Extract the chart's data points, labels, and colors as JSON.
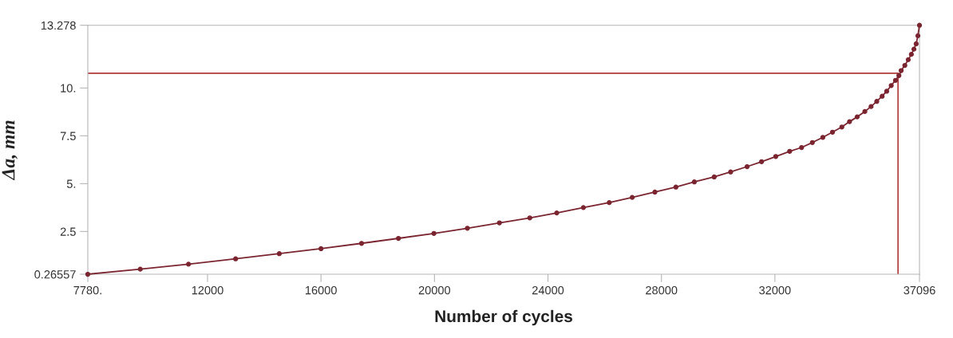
{
  "chart_data": {
    "type": "line",
    "xlabel": "Number of cycles",
    "ylabel": "Δa, mm",
    "series": [
      {
        "color": "#7a2530",
        "marker": "circle",
        "x": [
          7780,
          9630,
          11330,
          12990,
          14530,
          16000,
          17430,
          18730,
          19980,
          21160,
          22290,
          23360,
          24310,
          25250,
          26160,
          26970,
          27770,
          28510,
          29160,
          29860,
          30440,
          31020,
          31530,
          32030,
          32520,
          32940,
          33320,
          33690,
          34030,
          34360,
          34630,
          34900,
          35170,
          35390,
          35590,
          35780,
          35940,
          36100,
          36250,
          36370,
          36450,
          36580,
          36700,
          36810,
          36900,
          36980,
          37040,
          37096
        ],
        "values": [
          0.26557,
          0.53,
          0.79,
          1.07,
          1.34,
          1.6,
          1.88,
          2.14,
          2.4,
          2.67,
          2.95,
          3.21,
          3.47,
          3.75,
          4.01,
          4.28,
          4.56,
          4.82,
          5.09,
          5.35,
          5.61,
          5.89,
          6.15,
          6.42,
          6.69,
          6.89,
          7.15,
          7.42,
          7.69,
          7.96,
          8.24,
          8.49,
          8.77,
          9.03,
          9.3,
          9.57,
          9.83,
          10.13,
          10.4,
          10.65,
          10.91,
          11.18,
          11.48,
          11.76,
          12.03,
          12.31,
          12.73,
          13.278
        ]
      }
    ],
    "xlim": [
      7780,
      37096
    ],
    "xticks": [
      {
        "value": 7780,
        "label": "7780."
      },
      12000,
      16000,
      20000,
      24000,
      28000,
      32000,
      37096
    ],
    "ylim": [
      0.26557,
      13.278
    ],
    "yticks": [
      0.26557,
      2.5,
      {
        "value": 5,
        "label": "5."
      },
      7.5,
      {
        "value": 10,
        "label": "10."
      },
      13.278
    ],
    "ref_lines": [
      {
        "axis": "y",
        "value": 10.77,
        "color": "#b03a3a"
      },
      {
        "axis": "x",
        "value": 36340,
        "color": "#b03a3a"
      }
    ],
    "grid": false,
    "legend": false
  }
}
